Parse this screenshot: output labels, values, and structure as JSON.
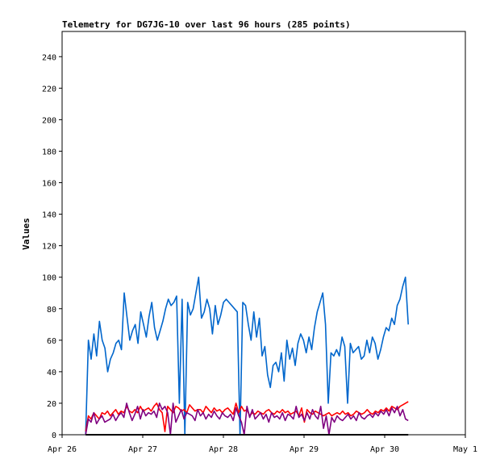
{
  "chart_data": {
    "type": "line",
    "title": "Telemetry for DG7JG-10 over last 96 hours (285 points)",
    "xlabel": "",
    "ylabel": "Values",
    "x_range": [
      "Apr 26",
      "May 1"
    ],
    "x_ticks": [
      "Apr 26",
      "Apr 27",
      "Apr 28",
      "Apr 29",
      "Apr 30",
      "May 1"
    ],
    "ylim": [
      0,
      256
    ],
    "y_ticks": [
      0,
      20,
      40,
      60,
      80,
      100,
      120,
      140,
      160,
      180,
      200,
      220,
      240
    ],
    "grid": false,
    "legend": "none",
    "data_start": "Apr 26 07:00",
    "data_end": "Apr 30 07:00",
    "series": [
      {
        "color": "#0066cc",
        "values": [
          0,
          60,
          48,
          64,
          50,
          72,
          60,
          55,
          40,
          48,
          52,
          58,
          60,
          54,
          90,
          75,
          60,
          66,
          70,
          58,
          78,
          70,
          62,
          75,
          84,
          68,
          60,
          66,
          72,
          80,
          86,
          82,
          84,
          88,
          20,
          86,
          0,
          84,
          76,
          80,
          90,
          100,
          74,
          78,
          86,
          80,
          64,
          82,
          70,
          76,
          84,
          86,
          84,
          82,
          80,
          78,
          0,
          84,
          82,
          70,
          60,
          78,
          62,
          74,
          50,
          56,
          38,
          30,
          44,
          46,
          40,
          52,
          34,
          60,
          48,
          55,
          44,
          58,
          64,
          60,
          52,
          62,
          54,
          68,
          78,
          84,
          90,
          70,
          20,
          52,
          50,
          54,
          50,
          62,
          56,
          20,
          58,
          52,
          54,
          56,
          48,
          50,
          60,
          52,
          62,
          58,
          48,
          54,
          62,
          68,
          66,
          74,
          70,
          82,
          86,
          94,
          100,
          70
        ]
      },
      {
        "color": "#ff0000",
        "values": [
          2,
          12,
          10,
          14,
          12,
          10,
          14,
          13,
          15,
          12,
          14,
          16,
          13,
          15,
          14,
          18,
          15,
          14,
          16,
          14,
          18,
          15,
          16,
          17,
          15,
          18,
          20,
          16,
          14,
          2,
          18,
          16,
          14,
          18,
          17,
          15,
          16,
          14,
          19,
          17,
          15,
          16,
          16,
          14,
          18,
          16,
          14,
          17,
          15,
          16,
          14,
          16,
          17,
          15,
          13,
          20,
          14,
          18,
          15,
          16,
          12,
          14,
          13,
          15,
          14,
          13,
          15,
          16,
          14,
          13,
          15,
          14,
          16,
          14,
          15,
          13,
          14,
          15,
          12,
          17,
          8,
          16,
          14,
          13,
          15,
          14,
          13,
          12,
          13,
          14,
          12,
          13,
          14,
          13,
          15,
          13,
          14,
          12,
          13,
          15,
          14,
          13,
          14,
          16,
          14,
          13,
          15,
          14,
          16,
          15,
          17,
          15,
          18,
          17,
          16,
          18,
          19,
          20,
          21
        ]
      },
      {
        "color": "#800080",
        "values": [
          0,
          10,
          8,
          14,
          7,
          10,
          12,
          8,
          9,
          10,
          13,
          9,
          12,
          14,
          11,
          20,
          14,
          9,
          13,
          18,
          10,
          16,
          12,
          14,
          13,
          15,
          11,
          20,
          16,
          18,
          14,
          0,
          20,
          8,
          12,
          16,
          10,
          14,
          13,
          12,
          9,
          16,
          12,
          14,
          10,
          13,
          11,
          15,
          12,
          10,
          14,
          12,
          11,
          13,
          9,
          17,
          12,
          8,
          0,
          18,
          11,
          16,
          10,
          12,
          14,
          10,
          13,
          8,
          14,
          11,
          12,
          10,
          14,
          9,
          13,
          12,
          10,
          18,
          11,
          13,
          9,
          14,
          10,
          16,
          12,
          10,
          18,
          4,
          12,
          0,
          11,
          8,
          12,
          10,
          9,
          11,
          13,
          10,
          12,
          9,
          14,
          11,
          10,
          12,
          13,
          11,
          14,
          12,
          15,
          13,
          16,
          12,
          17,
          14,
          18,
          12,
          16,
          10,
          9
        ]
      },
      {
        "color": "#000000",
        "values": [
          0,
          0
        ]
      }
    ]
  }
}
